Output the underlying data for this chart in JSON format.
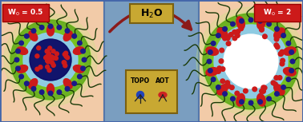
{
  "bg_left_color": "#f2cba8",
  "bg_center_color": "#7a9ec0",
  "bg_right_color": "#f2cba8",
  "label_left": "W$_0$ = 0.5",
  "label_right": "W$_0$ = 2",
  "label_h2o": "H$_2$O",
  "label_box_color": "#c8a832",
  "label_box_edge": "#7a6010",
  "arrow_color": "#8b1a1a",
  "green_outer_color": "#5aaa10",
  "green_inner_color": "#80cc20",
  "light_blue_color": "#90ccee",
  "dark_core_color": "#0a0a66",
  "red_oval_color": "#cc1a1a",
  "red_dot_color": "#cc1a1a",
  "navy_dot_color": "#1a1a88",
  "tail_color": "#1a3a08",
  "w0_box_color": "#cc1a1a"
}
